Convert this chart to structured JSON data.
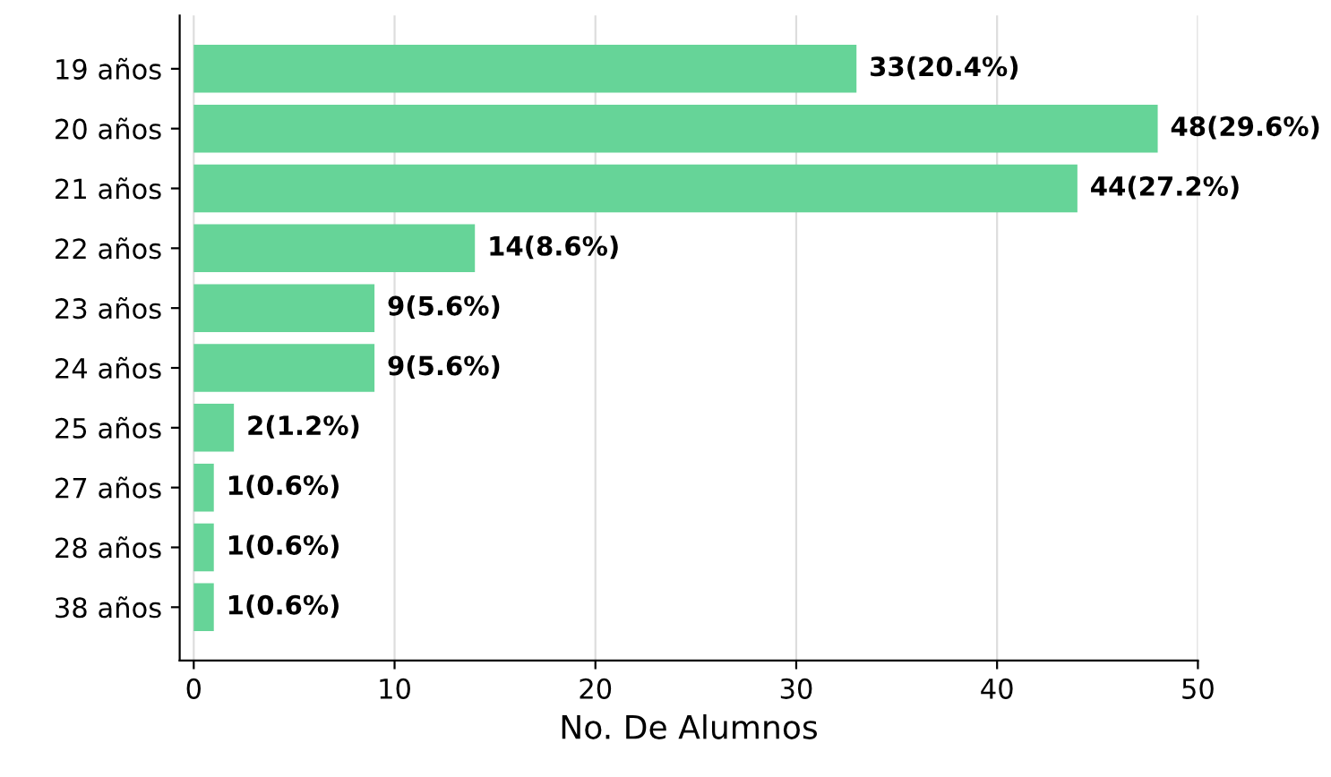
{
  "chart_data": {
    "type": "bar",
    "orientation": "horizontal",
    "xlabel": "No. De Alumnos",
    "categories": [
      "19 años",
      "20 años",
      "21 años",
      "22 años",
      "23 años",
      "24 años",
      "25 años",
      "27 años",
      "28 años",
      "38 años"
    ],
    "values": [
      33,
      48,
      44,
      14,
      9,
      9,
      2,
      1,
      1,
      1
    ],
    "value_labels": [
      "33(20.4%)",
      "48(29.6%)",
      "44(27.2%)",
      "14(8.6%)",
      "9(5.6%)",
      "9(5.6%)",
      "2(1.2%)",
      "1(0.6%)",
      "1(0.6%)",
      "1(0.6%)"
    ],
    "color": "#66d498",
    "xlim": [
      -0.7,
      50
    ],
    "xticks": [
      0,
      10,
      20,
      30,
      40,
      50
    ],
    "grid": "x",
    "legend": false
  }
}
